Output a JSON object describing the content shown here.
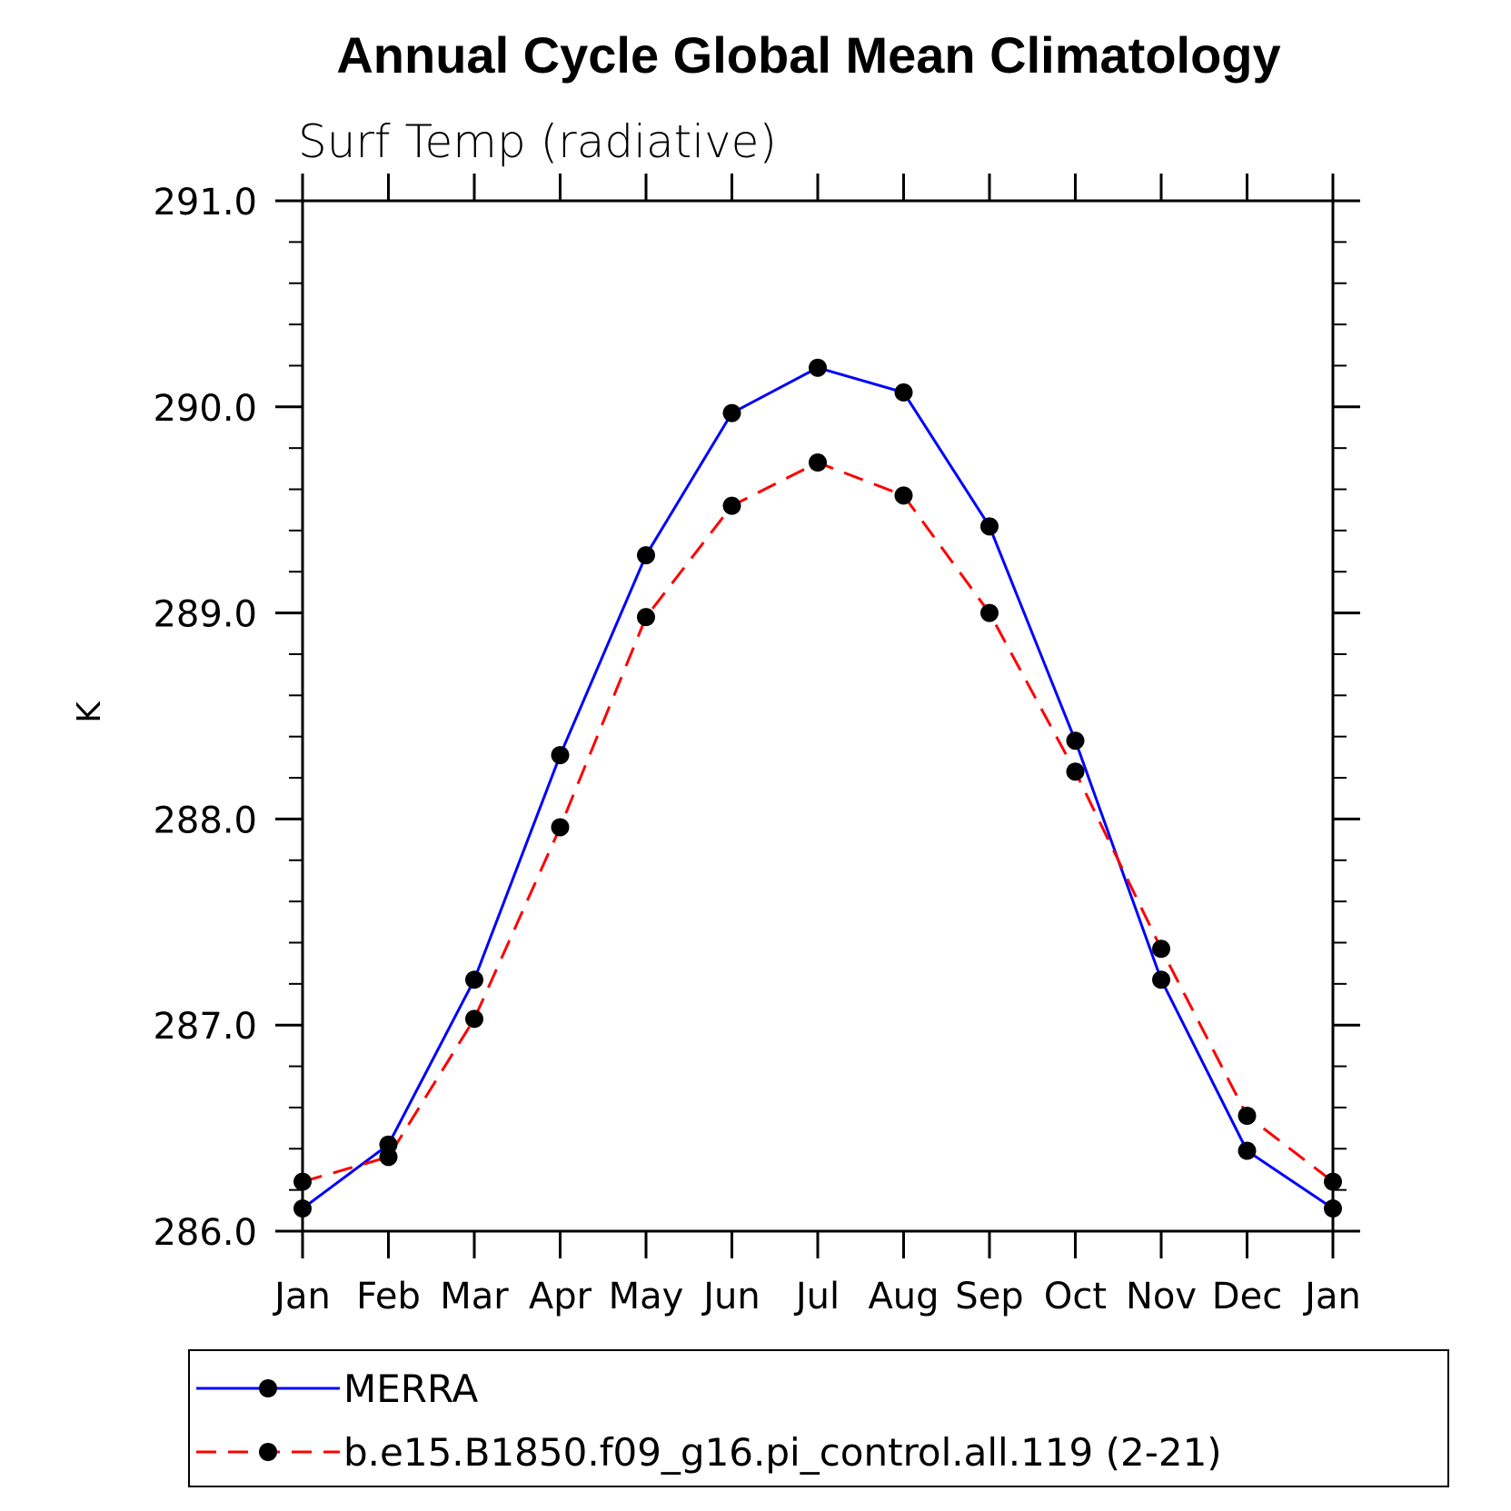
{
  "chart_data": {
    "type": "line",
    "title": "Annual Cycle Global Mean Climatology",
    "subtitle": "Surf Temp (radiative)",
    "xlabel": "",
    "ylabel": "K",
    "categories": [
      "Jan",
      "Feb",
      "Mar",
      "Apr",
      "May",
      "Jun",
      "Jul",
      "Aug",
      "Sep",
      "Oct",
      "Nov",
      "Dec",
      "Jan"
    ],
    "ylim": [
      286.0,
      291.0
    ],
    "yticks": [
      "286.0",
      "287.0",
      "288.0",
      "289.0",
      "290.0",
      "291.0"
    ],
    "series": [
      {
        "name": "MERRA",
        "color": "#0000ff",
        "line_style": "solid",
        "marker": "filled-circle",
        "values": [
          286.11,
          286.42,
          287.22,
          288.31,
          289.28,
          289.97,
          290.19,
          290.07,
          289.42,
          288.38,
          287.22,
          286.39,
          286.11
        ]
      },
      {
        "name": "b.e15.B1850.f09_g16.pi_control.all.119 (2-21)",
        "color": "#ff0000",
        "line_style": "dashed",
        "marker": "filled-circle",
        "values": [
          286.24,
          286.36,
          287.03,
          287.96,
          288.98,
          289.52,
          289.73,
          289.57,
          289.0,
          288.23,
          287.37,
          286.56,
          286.24
        ]
      }
    ],
    "grid": false,
    "legend_position": "bottom"
  }
}
